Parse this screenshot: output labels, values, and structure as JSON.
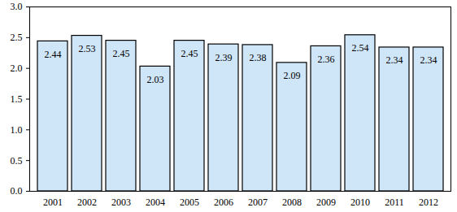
{
  "chart_data": {
    "type": "bar",
    "categories": [
      "2001",
      "2002",
      "2003",
      "2004",
      "2005",
      "2006",
      "2007",
      "2008",
      "2009",
      "2010",
      "2011",
      "2012"
    ],
    "values": [
      2.44,
      2.53,
      2.45,
      2.03,
      2.45,
      2.39,
      2.38,
      2.09,
      2.36,
      2.54,
      2.34,
      2.34
    ],
    "color": "#cfe5f8",
    "ylim": [
      0,
      3
    ],
    "yticks": [
      {
        "value": 0,
        "label": "0.0"
      },
      0.5,
      {
        "value": 1,
        "label": "1.0"
      },
      1.5,
      {
        "value": 2,
        "label": "2.0"
      },
      2.5,
      {
        "value": 3,
        "label": "3.0"
      }
    ],
    "grid": false,
    "data_labels": true
  }
}
